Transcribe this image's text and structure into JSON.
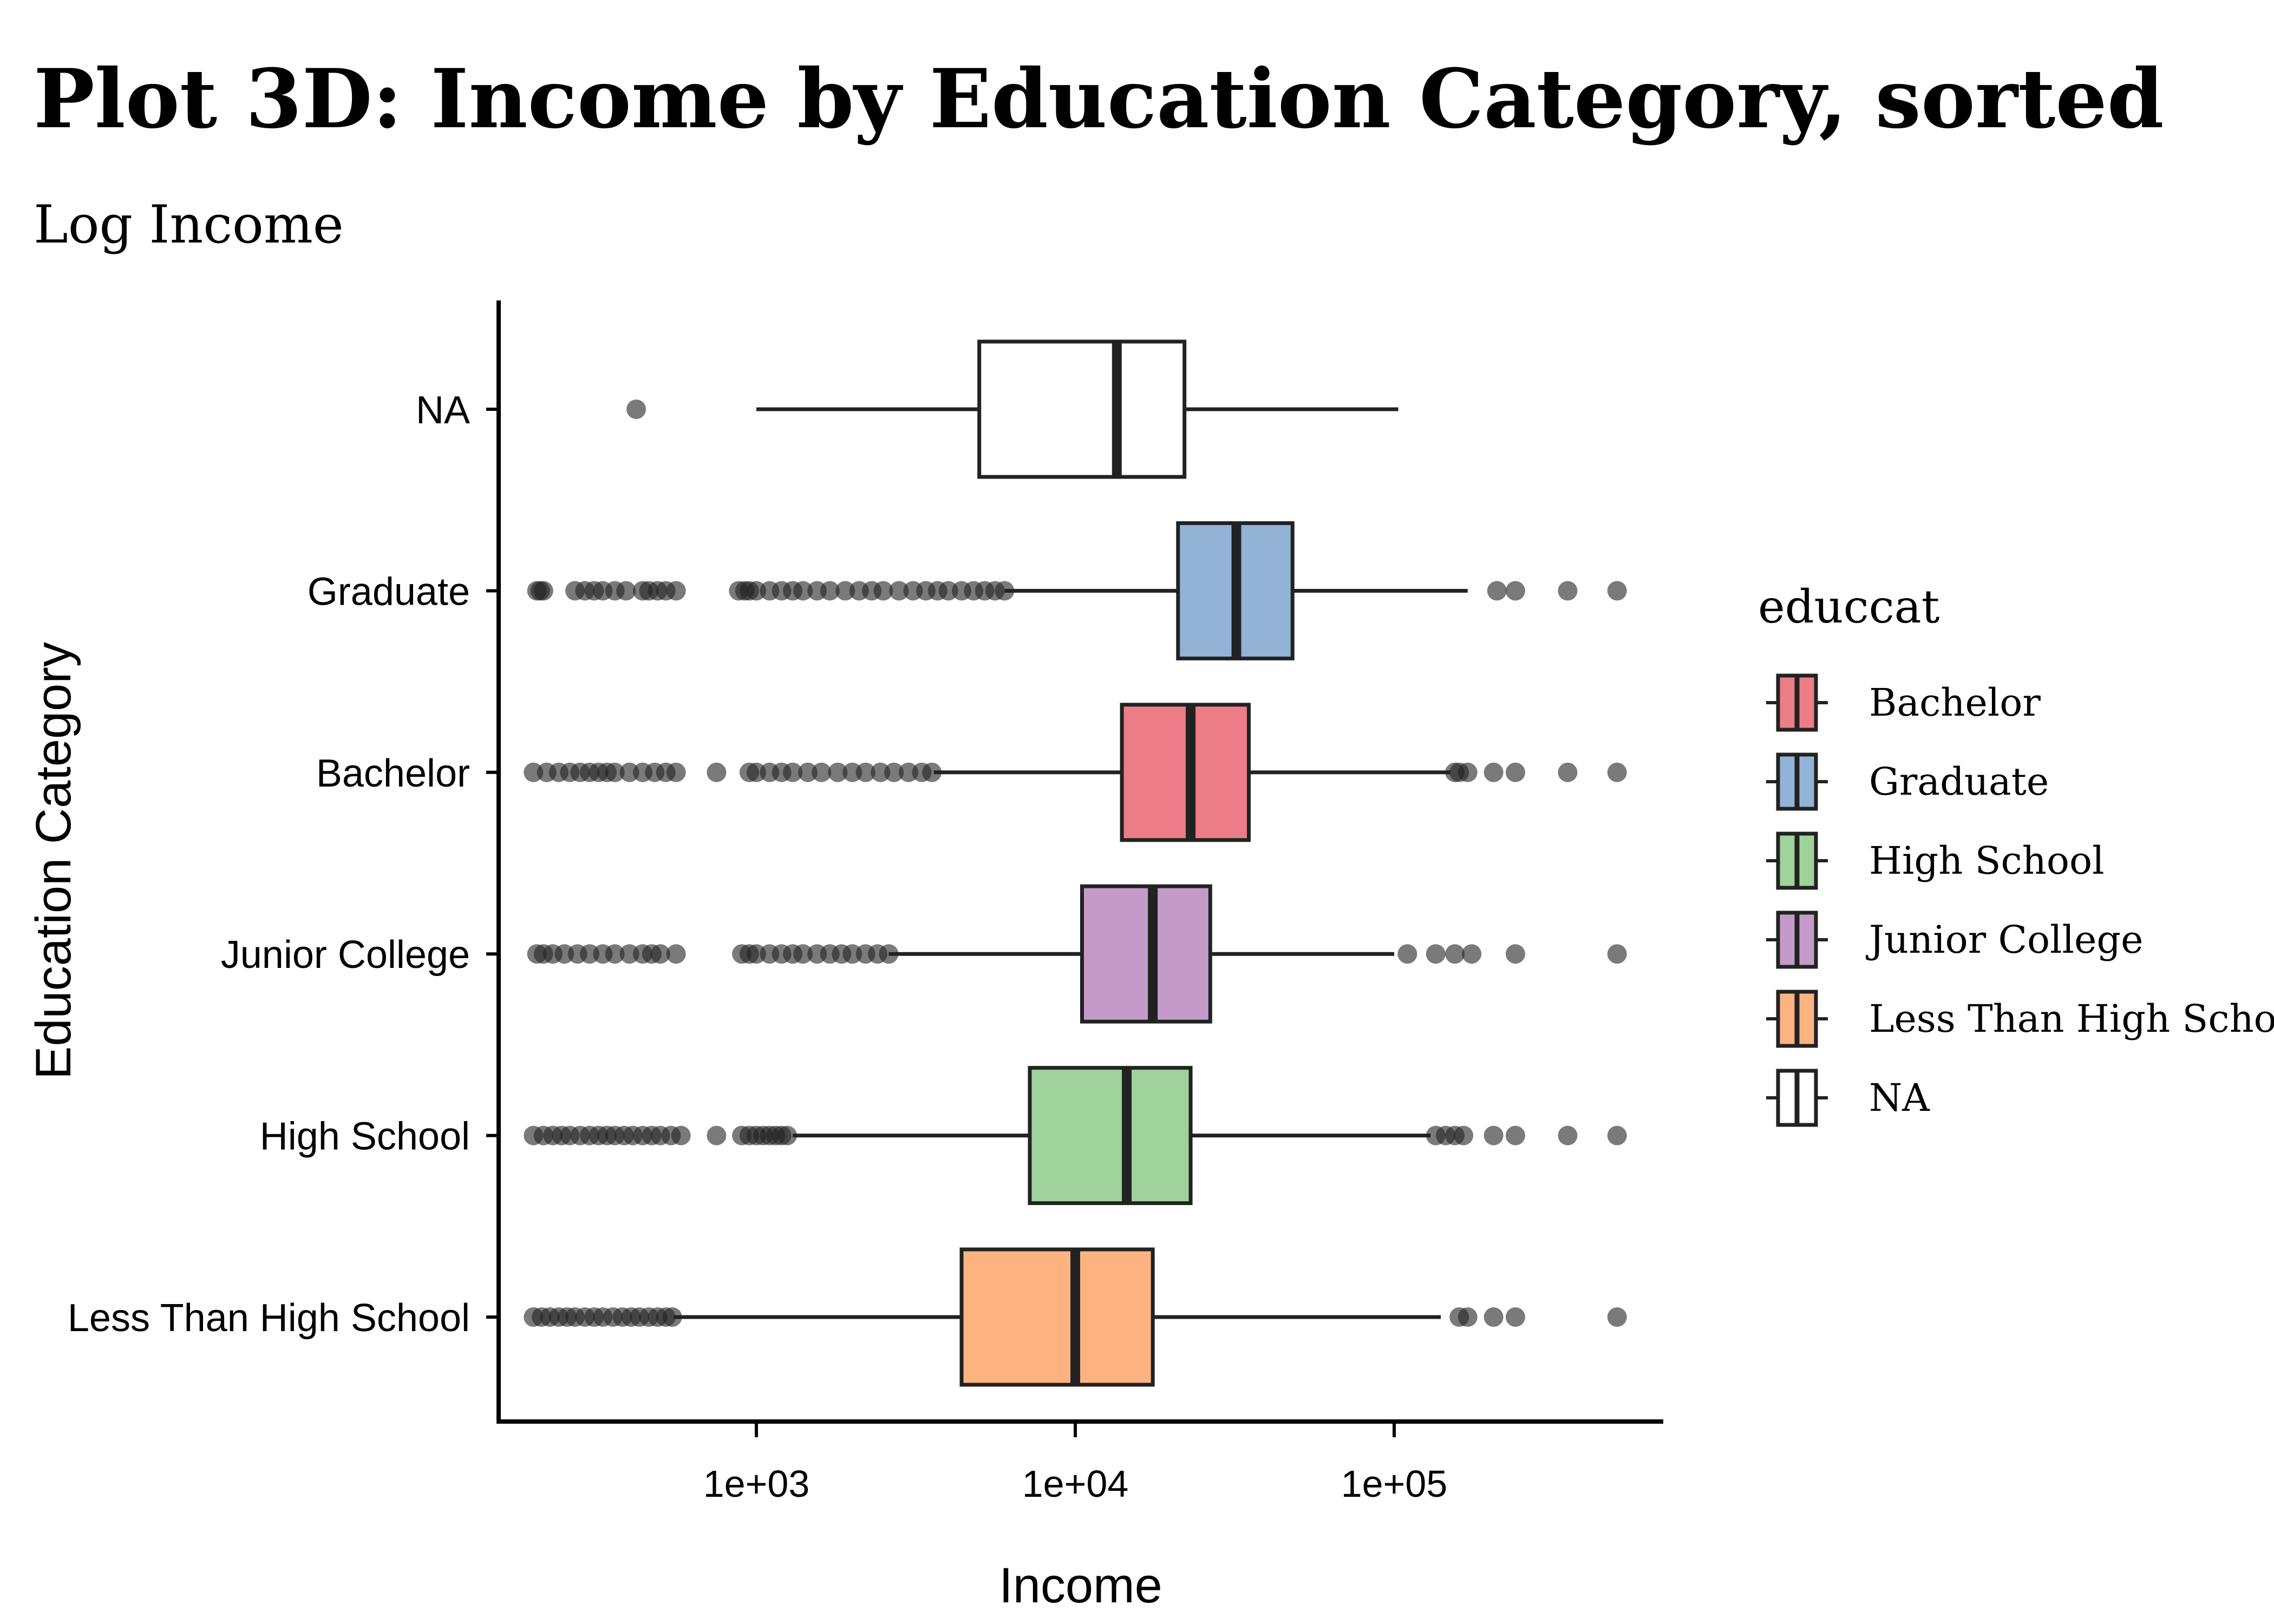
{
  "chart_data": {
    "type": "boxplot",
    "title": "Plot 3D: Income by Education Category, sorted",
    "subtitle": "Log Income",
    "xlabel": "Income",
    "ylabel": "Education Category",
    "x_scale": "log10",
    "xlim": [
      120,
      800000
    ],
    "x_ticks": [
      {
        "value": 1000,
        "label": "1e+03"
      },
      {
        "value": 10000,
        "label": "1e+04"
      },
      {
        "value": 100000,
        "label": "1e+05"
      }
    ],
    "legend_title": "educcat",
    "legend_position": "right",
    "grid": false,
    "categories": [
      "NA",
      "Graduate",
      "Bachelor",
      "Junior College",
      "High School",
      "Less Than High School"
    ],
    "legend_entries": [
      "Bachelor",
      "Graduate",
      "High School",
      "Junior College",
      "Less Than High School",
      "NA"
    ],
    "colors": {
      "Bachelor": "#ec7d87",
      "Graduate": "#93b3d6",
      "High School": "#a0d29b",
      "Junior College": "#c49bc8",
      "Less Than High School": "#fdb381",
      "NA": "#ffffff"
    },
    "boxes": [
      {
        "category": "NA",
        "whisker_low": 1000,
        "q1": 5000,
        "median": 13500,
        "q3": 22000,
        "whisker_high": 103000,
        "outliers": [
          420
        ]
      },
      {
        "category": "Graduate",
        "whisker_low": 6000,
        "q1": 21000,
        "median": 32000,
        "q3": 48000,
        "whisker_high": 170000,
        "outliers": [
          205,
          210,
          215,
          270,
          290,
          310,
          330,
          360,
          390,
          440,
          460,
          490,
          520,
          560,
          880,
          920,
          950,
          1000,
          1100,
          1200,
          1300,
          1400,
          1550,
          1700,
          1900,
          2100,
          2300,
          2500,
          2800,
          3100,
          3400,
          3700,
          4000,
          4400,
          4800,
          5200,
          5600,
          6000,
          210000,
          240000,
          350000,
          500000
        ]
      },
      {
        "category": "Bachelor",
        "whisker_low": 3600,
        "q1": 14000,
        "median": 23000,
        "q3": 35000,
        "whisker_high": 150000,
        "outliers": [
          200,
          220,
          240,
          260,
          280,
          300,
          320,
          340,
          360,
          400,
          440,
          480,
          520,
          560,
          750,
          950,
          1000,
          1100,
          1200,
          1300,
          1450,
          1600,
          1800,
          2000,
          2200,
          2450,
          2700,
          3000,
          3300,
          3550,
          155000,
          160000,
          170000,
          205000,
          240000,
          350000,
          500000
        ]
      },
      {
        "category": "Junior College",
        "whisker_low": 2600,
        "q1": 10500,
        "median": 17500,
        "q3": 26500,
        "whisker_high": 100000,
        "outliers": [
          205,
          215,
          230,
          250,
          275,
          300,
          330,
          360,
          400,
          440,
          470,
          500,
          560,
          900,
          950,
          1000,
          1100,
          1200,
          1300,
          1400,
          1550,
          1700,
          1850,
          2000,
          2200,
          2400,
          2600,
          110000,
          135000,
          155000,
          175000,
          240000,
          500000
        ]
      },
      {
        "category": "High School",
        "whisker_low": 1300,
        "q1": 7200,
        "median": 14500,
        "q3": 23000,
        "whisker_high": 130000,
        "outliers": [
          200,
          215,
          230,
          245,
          260,
          280,
          300,
          320,
          340,
          360,
          385,
          410,
          440,
          470,
          500,
          540,
          580,
          750,
          900,
          950,
          1000,
          1050,
          1100,
          1150,
          1200,
          1250,
          135000,
          145000,
          155000,
          165000,
          205000,
          240000,
          350000,
          500000
        ]
      },
      {
        "category": "Less Than High School",
        "whisker_low": 550,
        "q1": 4400,
        "median": 10000,
        "q3": 17500,
        "whisker_high": 140000,
        "outliers": [
          200,
          212,
          225,
          240,
          255,
          270,
          290,
          310,
          330,
          355,
          380,
          405,
          430,
          460,
          490,
          520,
          545,
          160000,
          170000,
          205000,
          240000,
          500000
        ]
      }
    ]
  }
}
